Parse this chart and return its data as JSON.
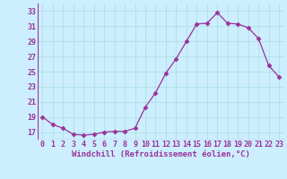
{
  "x": [
    0,
    1,
    2,
    3,
    4,
    5,
    6,
    7,
    8,
    9,
    10,
    11,
    12,
    13,
    14,
    15,
    16,
    17,
    18,
    19,
    20,
    21,
    22,
    23
  ],
  "y": [
    19.0,
    18.0,
    17.5,
    16.7,
    16.6,
    16.7,
    17.0,
    17.1,
    17.1,
    17.5,
    20.3,
    22.2,
    24.8,
    26.7,
    29.0,
    31.3,
    31.4,
    32.8,
    31.4,
    31.3,
    30.8,
    29.4,
    25.8,
    24.3
  ],
  "line_color": "#993399",
  "marker": "D",
  "markersize": 2.5,
  "linewidth": 0.9,
  "xlabel": "Windchill (Refroidissement éolien,°C)",
  "xlim": [
    -0.5,
    23.5
  ],
  "ylim": [
    16.0,
    34.0
  ],
  "yticks": [
    17,
    19,
    21,
    23,
    25,
    27,
    29,
    31,
    33
  ],
  "xticks": [
    0,
    1,
    2,
    3,
    4,
    5,
    6,
    7,
    8,
    9,
    10,
    11,
    12,
    13,
    14,
    15,
    16,
    17,
    18,
    19,
    20,
    21,
    22,
    23
  ],
  "grid_color": "#aadddd",
  "background_color": "#cceeff",
  "xlabel_fontsize": 6.5,
  "tick_fontsize": 6.0,
  "xlabel_color": "#993399",
  "tick_color": "#993399",
  "grid_linewidth": 0.5
}
